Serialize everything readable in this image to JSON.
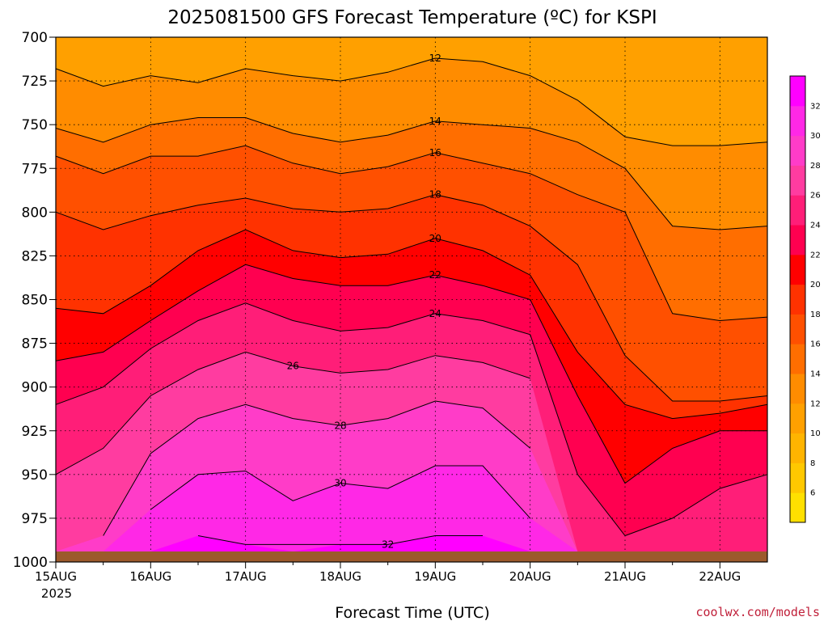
{
  "chart_data": {
    "type": "heatmap",
    "title": "2025081500 GFS Forecast Temperature (ºC) for KSPI",
    "xlabel": "Forecast Time (UTC)",
    "ylabel": "",
    "credit": "coolwx.com/models",
    "x_ticks": [
      "15AUG",
      "16AUG",
      "17AUG",
      "18AUG",
      "19AUG",
      "20AUG",
      "21AUG",
      "22AUG"
    ],
    "x_year": "2025",
    "xlim_days": [
      0,
      7.5
    ],
    "y_ticks": [
      "700",
      "725",
      "750",
      "775",
      "800",
      "825",
      "850",
      "875",
      "900",
      "925",
      "950",
      "975",
      "1000"
    ],
    "ylim": [
      1000,
      700
    ],
    "colorbar": {
      "ticks": [
        "6",
        "8",
        "10",
        "12",
        "14",
        "16",
        "18",
        "20",
        "22",
        "24",
        "26",
        "28",
        "30",
        "32"
      ],
      "range": [
        4,
        34
      ],
      "colors": [
        "#ffe000",
        "#ffc800",
        "#ffb400",
        "#ffa000",
        "#ff8c00",
        "#ff6e00",
        "#ff5000",
        "#ff3200",
        "#ff0000",
        "#ff0050",
        "#ff1e78",
        "#ff3ca0",
        "#ff3cc8",
        "#ff28e6",
        "#ff00ff"
      ]
    },
    "grid": true,
    "ground_color": "#9c5a2c",
    "days": [
      0,
      0.5,
      1,
      1.5,
      2,
      2.5,
      3,
      3.5,
      4,
      4.5,
      5,
      5.5,
      6,
      6.5,
      7,
      7.5
    ],
    "contours": [
      {
        "label": "12",
        "pressures": [
          718,
          728,
          722,
          726,
          718,
          722,
          725,
          720,
          712,
          714,
          722,
          736,
          757,
          762,
          762,
          760
        ]
      },
      {
        "label": "14",
        "pressures": [
          752,
          760,
          750,
          746,
          746,
          755,
          760,
          756,
          748,
          750,
          752,
          760,
          775,
          808,
          810,
          808
        ]
      },
      {
        "label": "16",
        "pressures": [
          768,
          778,
          768,
          768,
          762,
          772,
          778,
          774,
          766,
          772,
          778,
          790,
          800,
          858,
          862,
          860
        ]
      },
      {
        "label": "18",
        "pressures": [
          800,
          810,
          802,
          796,
          792,
          798,
          800,
          798,
          790,
          796,
          808,
          830,
          882,
          908,
          908,
          905
        ]
      },
      {
        "label": "20",
        "pressures": [
          855,
          858,
          842,
          822,
          810,
          822,
          826,
          824,
          815,
          822,
          836,
          880,
          910,
          918,
          915,
          910
        ]
      },
      {
        "label": "22",
        "pressures": [
          885,
          880,
          862,
          845,
          830,
          838,
          842,
          842,
          836,
          842,
          850,
          905,
          955,
          935,
          925,
          925
        ]
      },
      {
        "label": "24",
        "pressures": [
          910,
          900,
          878,
          862,
          852,
          862,
          868,
          866,
          858,
          862,
          870,
          950,
          985,
          975,
          958,
          950
        ]
      },
      {
        "label": "26",
        "pressures": [
          950,
          935,
          905,
          890,
          880,
          888,
          892,
          890,
          882,
          886,
          895,
          1000,
          1000,
          1000,
          1000,
          1000
        ]
      },
      {
        "label": "28",
        "pressures": [
          1000,
          985,
          938,
          918,
          910,
          918,
          922,
          918,
          908,
          912,
          935,
          1000,
          1000,
          1000,
          1000,
          1000
        ]
      },
      {
        "label": "30",
        "pressures": [
          1000,
          1000,
          970,
          950,
          948,
          965,
          955,
          958,
          945,
          945,
          975,
          1000,
          1000,
          1000,
          1000,
          1000
        ]
      },
      {
        "label": "32",
        "pressures": [
          1000,
          1000,
          1000,
          985,
          990,
          1000,
          990,
          990,
          985,
          985,
          1000,
          1000,
          1000,
          1000,
          1000,
          1000
        ]
      }
    ]
  }
}
